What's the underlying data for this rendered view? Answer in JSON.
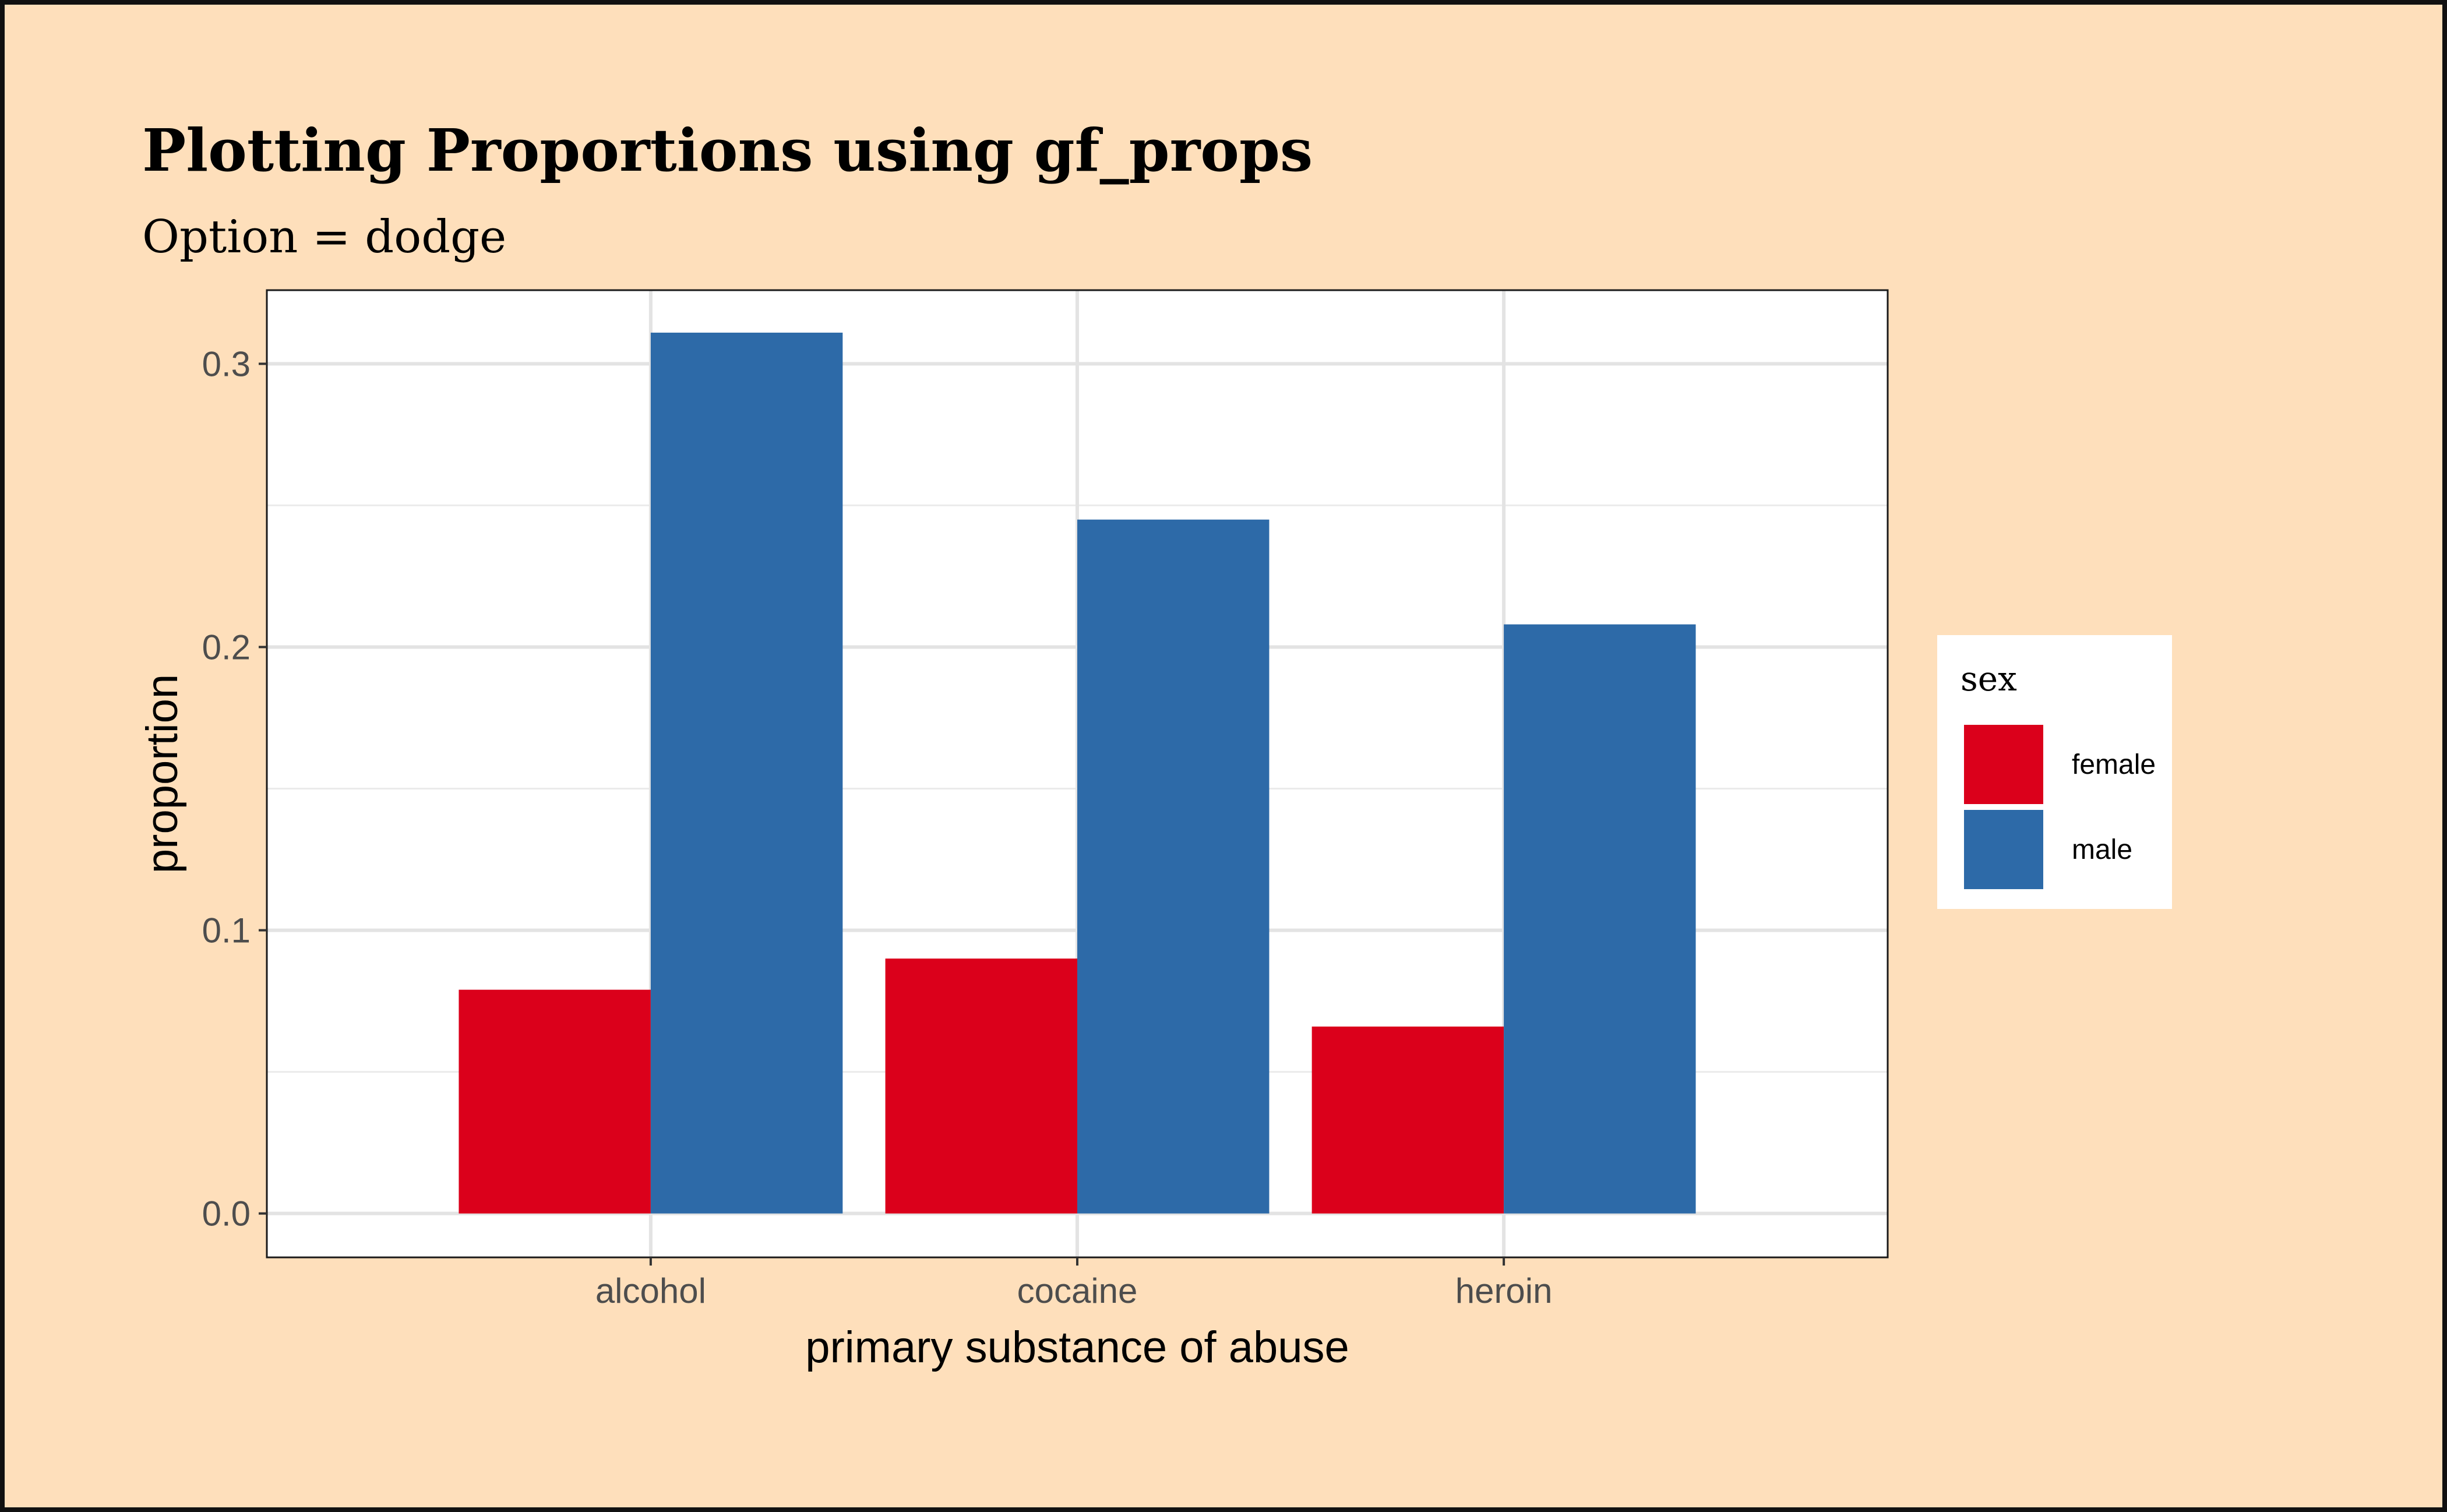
{
  "chart_data": {
    "type": "bar",
    "title": "Plotting Proportions using gf_props",
    "subtitle": "Option = dodge",
    "xlabel": "primary substance of abuse",
    "ylabel": "proportion",
    "categories": [
      "alcohol",
      "cocaine",
      "heroin"
    ],
    "series": [
      {
        "name": "female",
        "color": "#db001b",
        "values": [
          0.079,
          0.09,
          0.066
        ]
      },
      {
        "name": "male",
        "color": "#2d6aa8",
        "values": [
          0.311,
          0.245,
          0.208
        ]
      }
    ],
    "ylim": [
      -0.0155,
      0.326
    ],
    "yticks": [
      0.0,
      0.1,
      0.2,
      0.3
    ],
    "ytick_labels": [
      "0.0",
      "0.1",
      "0.2",
      "0.3"
    ],
    "position": "dodge",
    "grid": true,
    "legend": {
      "title": "sex",
      "placement": "right"
    },
    "background_color": "#fedfbb",
    "panel_color": "#ffffff"
  }
}
